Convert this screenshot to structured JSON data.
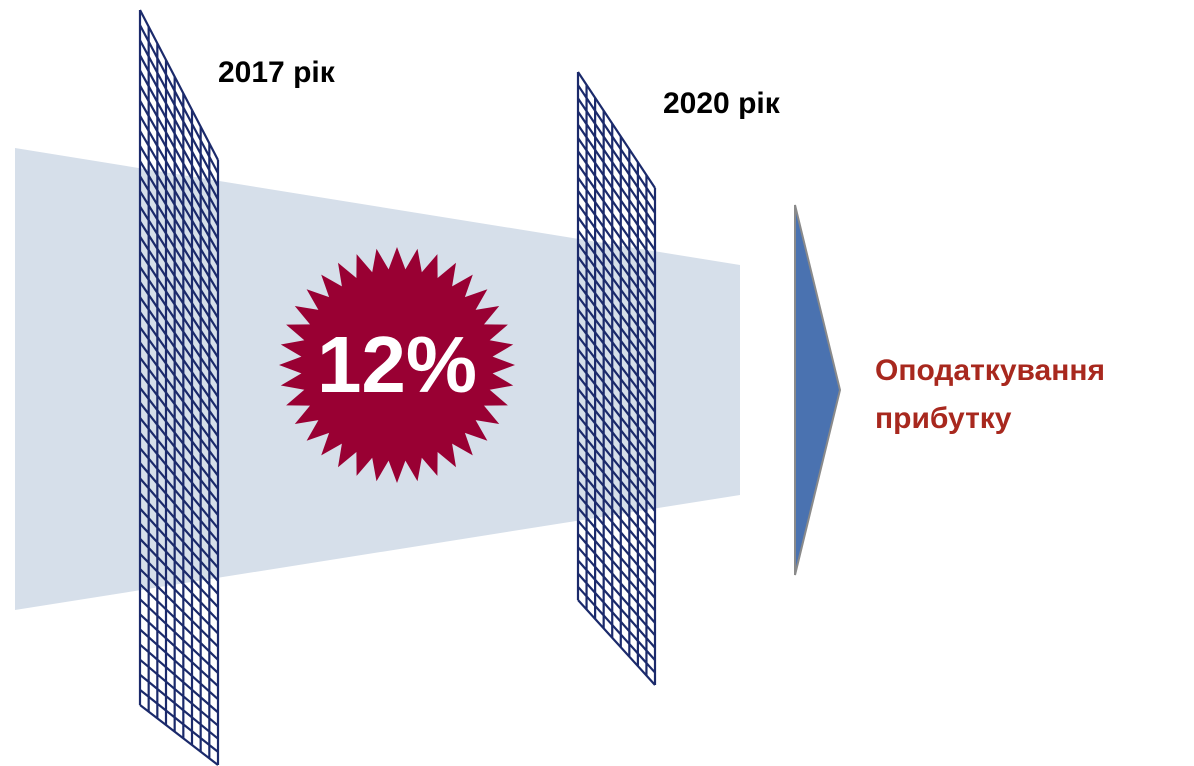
{
  "labels": {
    "year_start": "2017 рік",
    "year_end": "2020 рік",
    "rate": "12%",
    "target_lines": [
      "Оподаткування",
      "прибутку"
    ]
  }
}
